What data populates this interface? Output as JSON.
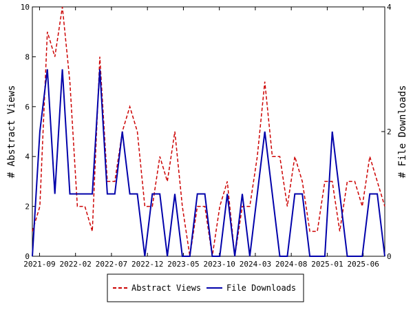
{
  "chart_data": {
    "type": "line",
    "x_tick_labels": [
      "2021-09",
      "2022-02",
      "2022-07",
      "2022-12",
      "2023-05",
      "2023-10",
      "2024-03",
      "2024-08",
      "2025-01",
      "2025-06"
    ],
    "x_start": "2021-08",
    "x_end": "2025-09",
    "left_axis": {
      "label": "# Abstract Views",
      "range": [
        0,
        10
      ],
      "ticks": [
        "0",
        "2",
        "4",
        "6",
        "8",
        "10"
      ]
    },
    "right_axis": {
      "label": "# File Downloads",
      "range": [
        0,
        4
      ],
      "ticks": [
        "0",
        "2",
        "4"
      ]
    },
    "legend_position": "bottom",
    "grid": false,
    "series": [
      {
        "name": "Abstract Views",
        "axis": "left",
        "color": "#cc0000",
        "style": "dashed",
        "values": [
          1,
          2,
          9,
          8,
          10,
          7,
          2,
          2,
          1,
          8,
          3,
          3,
          5,
          6,
          5,
          2,
          2,
          4,
          3,
          5,
          2,
          0,
          2,
          2,
          0,
          2,
          3,
          0,
          2,
          2,
          4,
          7,
          4,
          4,
          2,
          4,
          3,
          1,
          1,
          3,
          3,
          1,
          3,
          3,
          2,
          4,
          3,
          2
        ]
      },
      {
        "name": "File Downloads",
        "axis": "right",
        "color": "#0000aa",
        "style": "solid",
        "values": [
          0,
          2,
          3,
          1,
          3,
          1,
          1,
          1,
          1,
          3,
          1,
          1,
          2,
          1,
          1,
          0,
          1,
          1,
          0,
          1,
          0,
          0,
          1,
          1,
          0,
          0,
          1,
          0,
          1,
          0,
          1,
          2,
          1,
          0,
          0,
          1,
          1,
          0,
          0,
          0,
          2,
          1,
          0,
          0,
          0,
          1,
          1,
          0
        ]
      }
    ]
  }
}
